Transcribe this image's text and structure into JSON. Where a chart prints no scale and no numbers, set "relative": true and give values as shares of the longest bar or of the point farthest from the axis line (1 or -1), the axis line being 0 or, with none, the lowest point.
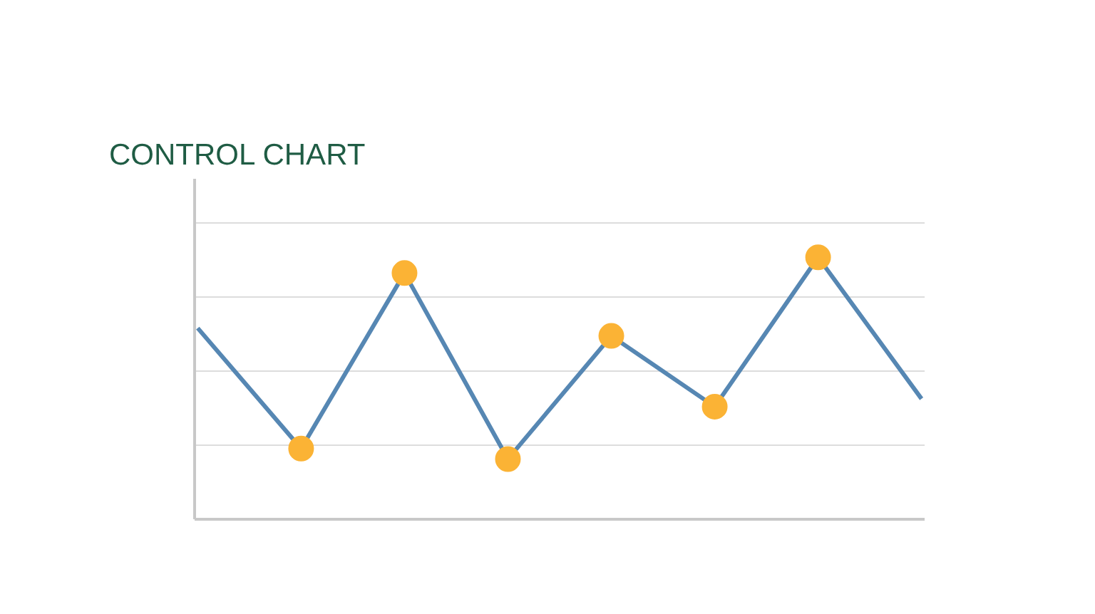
{
  "chart_data": {
    "type": "line",
    "title": "CONTROL CHART",
    "relative": true,
    "categories": [
      null,
      null,
      null,
      null,
      null,
      null,
      null,
      null
    ],
    "series": [
      {
        "color": "#5687b3",
        "marker": "circle",
        "colors": [
          null,
          "#fbb335",
          "#fbb335",
          "#fbb335",
          "#fbb335",
          "#fbb335",
          "#fbb335",
          null
        ],
        "values": [
          0.73,
          0.27,
          0.94,
          0.23,
          0.7,
          0.43,
          1.0,
          0.46
        ]
      }
    ],
    "grid": "y"
  }
}
